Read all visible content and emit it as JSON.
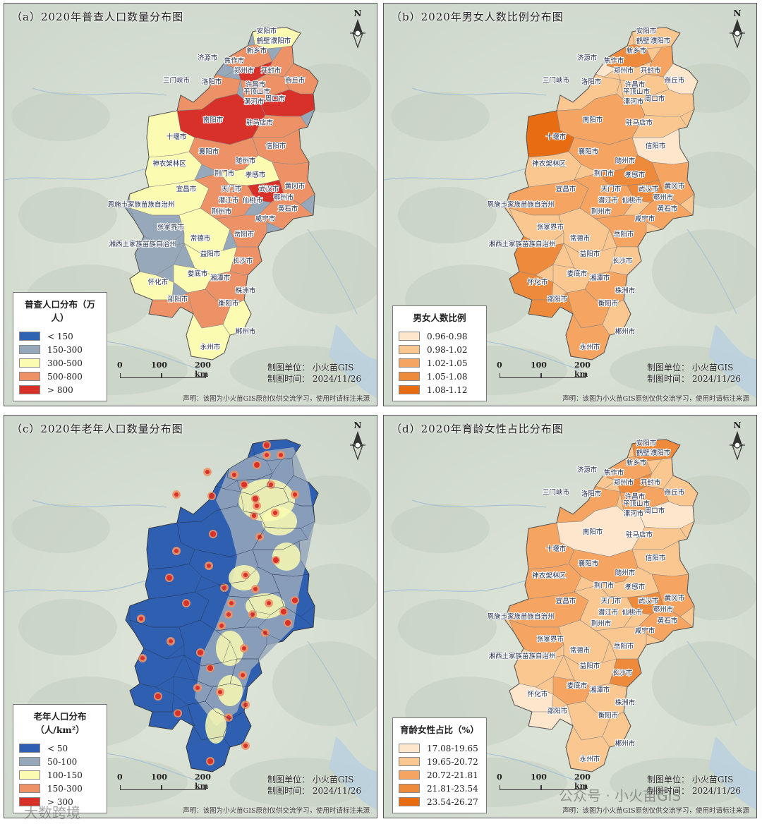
{
  "panels": [
    {
      "id": "a",
      "title": "（a）2020年普查人口数量分布图",
      "legend_title": "普查人口分布（万人）",
      "legend": [
        {
          "label": "< 150",
          "color": "#2f64b2"
        },
        {
          "label": "150-300",
          "color": "#97a8bb"
        },
        {
          "label": "300-500",
          "color": "#fcfbb2"
        },
        {
          "label": "500-800",
          "color": "#ed9267"
        },
        {
          "label": "> 800",
          "color": "#d7312a"
        }
      ]
    },
    {
      "id": "b",
      "title": "（b）2020年男女人数比例分布图",
      "legend_title": "男女人数比例",
      "legend": [
        {
          "label": "0.96-0.98",
          "color": "#fde6cc"
        },
        {
          "label": "0.98-1.02",
          "color": "#fbc791"
        },
        {
          "label": "1.02-1.05",
          "color": "#f6a462"
        },
        {
          "label": "1.05-1.08",
          "color": "#ee8a3b"
        },
        {
          "label": "1.08-1.12",
          "color": "#e86d12"
        }
      ]
    },
    {
      "id": "c",
      "title": "（c）2020年老年人口数量分布图",
      "legend_title": "老年人口分布（人/km²）",
      "legend": [
        {
          "label": "< 50",
          "color": "#2f5fb0"
        },
        {
          "label": "50-100",
          "color": "#97a8bb"
        },
        {
          "label": "100-150",
          "color": "#fcfbb2"
        },
        {
          "label": "150-300",
          "color": "#ed9267"
        },
        {
          "label": "> 300",
          "color": "#d7312a"
        }
      ]
    },
    {
      "id": "d",
      "title": "（d）2020年育龄女性占比分布图",
      "legend_title": "育龄女性占比（%）",
      "legend": [
        {
          "label": "17.08-19.65",
          "color": "#fde6cc"
        },
        {
          "label": "19.65-20.72",
          "color": "#fbc791"
        },
        {
          "label": "20.72-21.81",
          "color": "#f6a462"
        },
        {
          "label": "21.81-23.54",
          "color": "#ee8a3b"
        },
        {
          "label": "23.54-26.27",
          "color": "#e86d12"
        }
      ]
    }
  ],
  "north_label": "N",
  "scale": {
    "t0": "0",
    "t1": "100",
    "t2": "200 km"
  },
  "credit_org": "制图单位：  小火苗GIS",
  "credit_date": "制图时间：  2024/11/26",
  "statement": "声明：该图为小火苗GIS原创仅供交流学习，使用时请标注来源",
  "cities": [
    "安阳市",
    "鹤壁市",
    "濮阳市",
    "新乡市",
    "济源市",
    "焦作市",
    "郑州市",
    "开封市",
    "三门峡市",
    "洛阳市",
    "商丘市",
    "平顶山市",
    "许昌市",
    "漯河市",
    "周口市",
    "南阳市",
    "驻马店市",
    "十堰市",
    "信阳市",
    "襄阳市",
    "随州市",
    "神农架林区",
    "荆门市",
    "孝感市",
    "宜昌市",
    "天门市",
    "武汉市",
    "黄冈市",
    "潜江市",
    "仙桃市",
    "鄂州市",
    "恩施土家族苗族自治州",
    "荆州市",
    "黄石市",
    "咸宁市",
    "张家界市",
    "常德市",
    "岳阳市",
    "湘西土家族苗族自治州",
    "益阳市",
    "长沙市",
    "娄底市",
    "怀化市",
    "湘潭市",
    "株洲市",
    "邵阳市",
    "衡阳市",
    "郴州市",
    "永州市"
  ],
  "watermark_left": "大数跨境",
  "watermark_right": "公众号 · 小火苗GIS"
}
